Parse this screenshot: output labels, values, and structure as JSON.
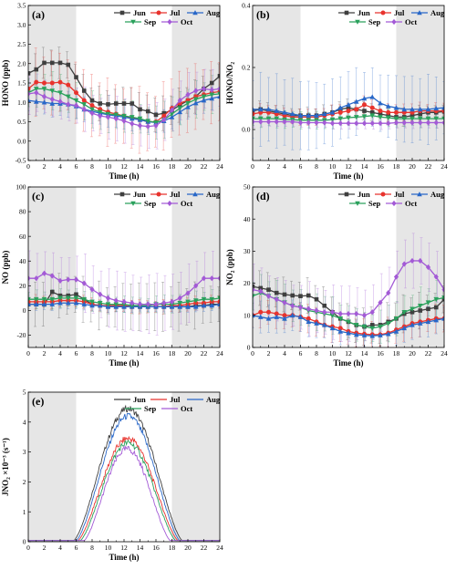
{
  "colors": {
    "Jun": "#3f3f3f",
    "Jul": "#e8332d",
    "Aug": "#2867c8",
    "Sep": "#2aa15c",
    "Oct": "#a35ad6",
    "shade": "#e6e6e6"
  },
  "chart_data": [
    {
      "id": "a",
      "panel_label": "(a)",
      "type": "line",
      "xlabel": "Time (h)",
      "ylabel": "HONO (ppb)",
      "xlim": [
        0,
        24
      ],
      "ylim": [
        -0.5,
        3.5
      ],
      "xticks": [
        "0",
        "2",
        "4",
        "6",
        "8",
        "10",
        "12",
        "14",
        "16",
        "18",
        "20",
        "22",
        "24"
      ],
      "yticks": [
        "-0.5",
        "0.0",
        "0.5",
        "1.0",
        "1.5",
        "2.0",
        "2.5",
        "3.0",
        "3.5"
      ],
      "shaded": [
        [
          0,
          6
        ],
        [
          18,
          24
        ]
      ],
      "legend": [
        "Jun",
        "Jul",
        "Aug",
        "Sep",
        "Oct"
      ],
      "x": [
        0,
        1,
        2,
        3,
        4,
        5,
        6,
        7,
        8,
        9,
        10,
        11,
        12,
        13,
        14,
        15,
        16,
        17,
        18,
        19,
        20,
        21,
        22,
        23,
        24
      ],
      "series": [
        {
          "name": "Jun",
          "err": 0.45,
          "values": [
            1.75,
            1.85,
            2.02,
            2.02,
            2.02,
            1.97,
            1.65,
            1.3,
            1.05,
            0.97,
            0.95,
            0.97,
            0.97,
            0.97,
            0.82,
            0.77,
            0.68,
            0.72,
            0.8,
            0.93,
            1.05,
            1.15,
            1.35,
            1.5,
            1.68
          ]
        },
        {
          "name": "Jul",
          "err": 0.9,
          "values": [
            1.35,
            1.52,
            1.5,
            1.5,
            1.52,
            1.45,
            1.25,
            1.05,
            0.92,
            0.82,
            0.75,
            0.7,
            0.65,
            0.6,
            0.55,
            0.5,
            0.5,
            0.65,
            0.85,
            0.98,
            1.05,
            1.15,
            1.2,
            1.25,
            1.28
          ]
        },
        {
          "name": "Aug",
          "err": 0.35,
          "values": [
            1.05,
            1.02,
            1.0,
            0.97,
            0.97,
            0.95,
            0.9,
            0.82,
            0.77,
            0.72,
            0.68,
            0.65,
            0.62,
            0.58,
            0.55,
            0.5,
            0.48,
            0.52,
            0.62,
            0.75,
            0.88,
            0.98,
            1.05,
            1.1,
            1.15
          ]
        },
        {
          "name": "Sep",
          "err": 0.5,
          "values": [
            1.25,
            1.35,
            1.35,
            1.3,
            1.25,
            1.15,
            1.05,
            0.95,
            0.82,
            0.75,
            0.7,
            0.68,
            0.65,
            0.62,
            0.58,
            0.52,
            0.48,
            0.55,
            0.7,
            0.85,
            0.98,
            1.08,
            1.15,
            1.2,
            1.22
          ]
        },
        {
          "name": "Oct",
          "err": 0.6,
          "values": [
            1.22,
            1.25,
            1.15,
            1.08,
            1.02,
            0.95,
            0.92,
            0.82,
            0.72,
            0.65,
            0.62,
            0.58,
            0.52,
            0.45,
            0.4,
            0.38,
            0.4,
            0.55,
            0.8,
            1.05,
            1.2,
            1.3,
            1.35,
            1.32,
            1.35
          ]
        }
      ]
    },
    {
      "id": "b",
      "panel_label": "(b)",
      "type": "line",
      "xlabel": "Time (h)",
      "ylabel": "HONO/NO₂",
      "xlim": [
        0,
        24
      ],
      "ylim": [
        -0.1,
        0.4
      ],
      "xticks": [
        "0",
        "2",
        "4",
        "6",
        "8",
        "10",
        "12",
        "14",
        "16",
        "18",
        "20",
        "22",
        "24"
      ],
      "yticks": [
        "0.0",
        "0.2",
        "0.4"
      ],
      "shaded": [
        [
          0,
          6
        ],
        [
          18,
          24
        ]
      ],
      "legend": [
        "Jun",
        "Jul",
        "Aug",
        "Sep",
        "Oct"
      ],
      "x": [
        0,
        1,
        2,
        3,
        4,
        5,
        6,
        7,
        8,
        9,
        10,
        11,
        12,
        13,
        14,
        15,
        16,
        17,
        18,
        19,
        20,
        21,
        22,
        23,
        24
      ],
      "series": [
        {
          "name": "Jun",
          "err": 0.03,
          "values": [
            0.06,
            0.065,
            0.06,
            0.055,
            0.05,
            0.045,
            0.045,
            0.045,
            0.045,
            0.05,
            0.055,
            0.065,
            0.07,
            0.065,
            0.06,
            0.055,
            0.05,
            0.045,
            0.04,
            0.04,
            0.045,
            0.05,
            0.055,
            0.055,
            0.058
          ]
        },
        {
          "name": "Jul",
          "err": 0.03,
          "values": [
            0.05,
            0.055,
            0.055,
            0.05,
            0.045,
            0.04,
            0.04,
            0.04,
            0.04,
            0.045,
            0.05,
            0.055,
            0.06,
            0.065,
            0.08,
            0.07,
            0.06,
            0.055,
            0.055,
            0.055,
            0.055,
            0.06,
            0.06,
            0.06,
            0.06
          ]
        },
        {
          "name": "Aug",
          "err": 0.12,
          "values": [
            0.065,
            0.065,
            0.065,
            0.06,
            0.055,
            0.05,
            0.045,
            0.045,
            0.045,
            0.05,
            0.055,
            0.07,
            0.08,
            0.09,
            0.1,
            0.105,
            0.085,
            0.075,
            0.07,
            0.065,
            0.065,
            0.065,
            0.065,
            0.068,
            0.07
          ]
        },
        {
          "name": "Sep",
          "err": 0.03,
          "values": [
            0.035,
            0.035,
            0.035,
            0.035,
            0.032,
            0.032,
            0.03,
            0.03,
            0.03,
            0.03,
            0.032,
            0.035,
            0.038,
            0.04,
            0.042,
            0.045,
            0.04,
            0.038,
            0.035,
            0.035,
            0.035,
            0.035,
            0.035,
            0.035,
            0.035
          ]
        },
        {
          "name": "Oct",
          "err": 0.02,
          "values": [
            0.025,
            0.025,
            0.025,
            0.025,
            0.025,
            0.025,
            0.022,
            0.022,
            0.022,
            0.022,
            0.02,
            0.02,
            0.02,
            0.02,
            0.02,
            0.02,
            0.02,
            0.02,
            0.022,
            0.022,
            0.022,
            0.022,
            0.022,
            0.022,
            0.022
          ]
        }
      ]
    },
    {
      "id": "c",
      "panel_label": "(c)",
      "type": "line",
      "xlabel": "Time (h)",
      "ylabel": "NO (ppb)",
      "xlim": [
        0,
        24
      ],
      "ylim": [
        -30,
        100
      ],
      "xticks": [
        "0",
        "2",
        "4",
        "6",
        "8",
        "10",
        "12",
        "14",
        "16",
        "18",
        "20",
        "22",
        "24"
      ],
      "yticks": [
        "-20",
        "0",
        "20",
        "40",
        "60",
        "80",
        "100"
      ],
      "shaded": [
        [
          0,
          6
        ],
        [
          18,
          24
        ]
      ],
      "legend": [
        "Jun",
        "Jul",
        "Aug",
        "Sep",
        "Oct"
      ],
      "x": [
        0,
        1,
        2,
        3,
        4,
        5,
        6,
        7,
        8,
        9,
        10,
        11,
        12,
        13,
        14,
        15,
        16,
        17,
        18,
        19,
        20,
        21,
        22,
        23,
        24
      ],
      "series": [
        {
          "name": "Jun",
          "err": 20,
          "values": [
            5,
            5,
            5,
            15,
            12,
            12,
            13,
            9,
            5,
            4,
            3,
            3,
            3,
            3,
            3,
            3,
            3,
            3,
            3,
            3,
            3,
            4,
            4,
            5,
            5
          ]
        },
        {
          "name": "Jul",
          "err": 6,
          "values": [
            7,
            7,
            7,
            7,
            8,
            8,
            8,
            7,
            5,
            4,
            4,
            4,
            4,
            3,
            3,
            3,
            3,
            3,
            4,
            4,
            5,
            6,
            6,
            7,
            7
          ]
        },
        {
          "name": "Aug",
          "err": 5,
          "values": [
            5,
            5,
            5,
            5,
            6,
            6,
            6,
            5,
            4,
            4,
            3,
            3,
            3,
            3,
            3,
            3,
            3,
            3,
            3,
            3,
            3,
            3,
            4,
            4,
            5
          ]
        },
        {
          "name": "Sep",
          "err": 8,
          "values": [
            9,
            9,
            9,
            9,
            10,
            10,
            10,
            9,
            7,
            6,
            5,
            5,
            5,
            4,
            4,
            4,
            5,
            5,
            5,
            6,
            7,
            8,
            9,
            9,
            10
          ]
        },
        {
          "name": "Oct",
          "err": 25,
          "values": [
            26,
            26,
            30,
            28,
            24,
            25,
            25,
            22,
            17,
            13,
            10,
            8,
            7,
            6,
            5,
            5,
            5,
            6,
            7,
            10,
            14,
            20,
            26,
            26,
            26
          ]
        }
      ]
    },
    {
      "id": "d",
      "panel_label": "(d)",
      "type": "line",
      "xlabel": "Time (h)",
      "ylabel": "NO₂ (ppb)",
      "xlim": [
        0,
        24
      ],
      "ylim": [
        0,
        50
      ],
      "xticks": [
        "0",
        "2",
        "4",
        "6",
        "8",
        "10",
        "12",
        "14",
        "16",
        "18",
        "20",
        "22",
        "24"
      ],
      "yticks": [
        "0",
        "10",
        "20",
        "30",
        "40",
        "50"
      ],
      "shaded": [
        [
          0,
          6
        ],
        [
          18,
          24
        ]
      ],
      "legend": [
        "Jun",
        "Jul",
        "Aug",
        "Sep",
        "Oct"
      ],
      "x": [
        0,
        1,
        2,
        3,
        4,
        5,
        6,
        7,
        8,
        9,
        10,
        11,
        12,
        13,
        14,
        15,
        16,
        17,
        18,
        19,
        20,
        21,
        22,
        23,
        24
      ],
      "series": [
        {
          "name": "Jun",
          "err": 6,
          "values": [
            19,
            18.5,
            18,
            17,
            16.5,
            16.2,
            16,
            16.2,
            15,
            13,
            11,
            9,
            8,
            7,
            6.5,
            7,
            7,
            8,
            9,
            10.5,
            11,
            11.5,
            12,
            12.5,
            15
          ]
        },
        {
          "name": "Jul",
          "err": 5,
          "values": [
            10,
            11,
            11,
            10.5,
            10,
            10,
            9.5,
            9,
            8,
            7,
            6.5,
            6,
            5,
            4.5,
            4.2,
            4,
            4,
            4.5,
            5.5,
            6.5,
            7.5,
            8,
            8.5,
            9,
            9
          ]
        },
        {
          "name": "Aug",
          "err": 5,
          "values": [
            10,
            9.5,
            9,
            9.5,
            9,
            10,
            9.5,
            8,
            7.5,
            7,
            6,
            5,
            4.5,
            4,
            3.8,
            3.6,
            3.8,
            4.2,
            5,
            6,
            7,
            7.5,
            8,
            8.5,
            9
          ]
        },
        {
          "name": "Sep",
          "err": 6,
          "values": [
            16,
            17,
            16,
            15,
            14,
            13,
            12.5,
            11.5,
            11,
            10.5,
            10,
            9,
            8,
            7,
            6.5,
            6,
            6.5,
            7.5,
            9,
            11,
            12,
            13,
            14,
            15,
            15.5
          ]
        },
        {
          "name": "Oct",
          "err": 9,
          "values": [
            18,
            17.5,
            16,
            15,
            14,
            13,
            12.5,
            12,
            11.5,
            11,
            11,
            10.5,
            10.5,
            10.5,
            10,
            11,
            14,
            17,
            22,
            26,
            27,
            27,
            25,
            22,
            18
          ]
        }
      ]
    },
    {
      "id": "e",
      "panel_label": "(e)",
      "type": "line",
      "xlabel": "Time (h)",
      "ylabel": "JNO₂ ×10⁻³ (s⁻¹)",
      "xlim": [
        0,
        24
      ],
      "ylim": [
        0,
        5
      ],
      "xticks": [
        "0",
        "2",
        "4",
        "6",
        "8",
        "10",
        "12",
        "14",
        "16",
        "18",
        "20",
        "22",
        "24"
      ],
      "yticks": [
        "0",
        "1",
        "2",
        "3",
        "4",
        "5"
      ],
      "shaded": [
        [
          0,
          6
        ],
        [
          18,
          24
        ]
      ],
      "legend": [
        "Jun",
        "Jul",
        "Aug",
        "Sep",
        "Oct"
      ],
      "series": [
        {
          "name": "Jun",
          "start": 5.5,
          "end": 19.5,
          "peak": 4.45
        },
        {
          "name": "Jul",
          "start": 6.0,
          "end": 19.0,
          "peak": 3.45
        },
        {
          "name": "Aug",
          "start": 5.8,
          "end": 19.2,
          "peak": 4.2
        },
        {
          "name": "Sep",
          "start": 6.3,
          "end": 18.7,
          "peak": 3.3
        },
        {
          "name": "Oct",
          "start": 6.8,
          "end": 18.0,
          "peak": 3.1
        }
      ]
    }
  ]
}
